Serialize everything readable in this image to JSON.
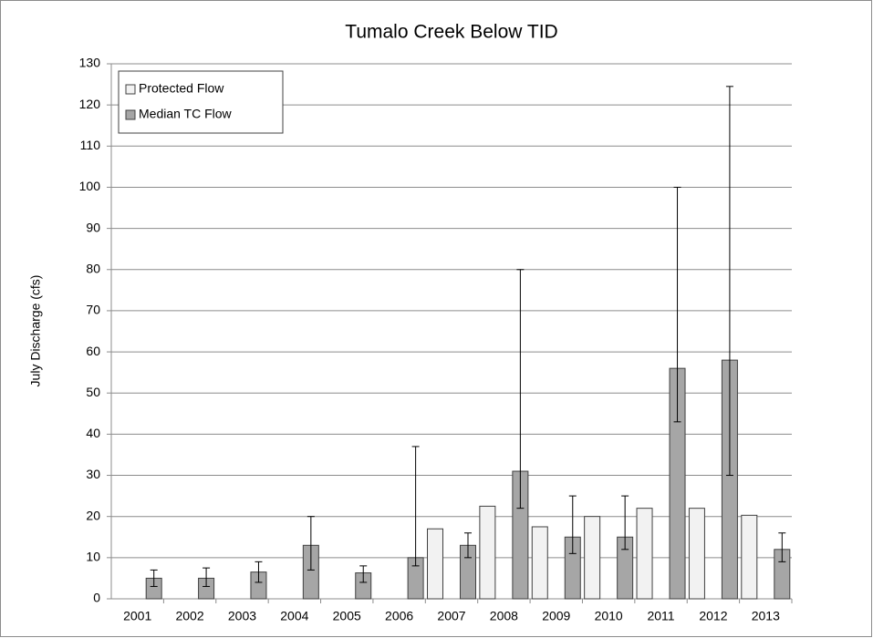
{
  "chart_data": {
    "type": "bar",
    "title": "Tumalo Creek Below TID",
    "y_label": "July Discharge (cfs)",
    "categories": [
      "2001",
      "2002",
      "2003",
      "2004",
      "2005",
      "2006",
      "2007",
      "2008",
      "2009",
      "2010",
      "2011",
      "2012",
      "2013"
    ],
    "series": [
      {
        "name": "Protected Flow",
        "color": "#f2f2f2",
        "values": [
          null,
          null,
          null,
          null,
          null,
          null,
          17,
          22.5,
          17.5,
          20,
          22,
          22,
          20.3
        ]
      },
      {
        "name": "Median TC Flow",
        "color": "#a6a6a6",
        "values": [
          5,
          5,
          6.5,
          13,
          6.3,
          10,
          13,
          31,
          15,
          15,
          56,
          58,
          12
        ],
        "error_low": [
          3,
          3,
          4,
          7,
          4,
          8,
          10,
          22,
          11,
          12,
          43,
          30,
          9
        ],
        "error_high": [
          7,
          7.5,
          9,
          20,
          8,
          37,
          16,
          80,
          25,
          25,
          100,
          124.5,
          16
        ]
      }
    ],
    "ylim": [
      0,
      130
    ],
    "yticks": [
      0,
      10,
      20,
      30,
      40,
      50,
      60,
      70,
      80,
      90,
      100,
      110,
      120,
      130
    ],
    "grid": true,
    "legend": "top-left"
  }
}
